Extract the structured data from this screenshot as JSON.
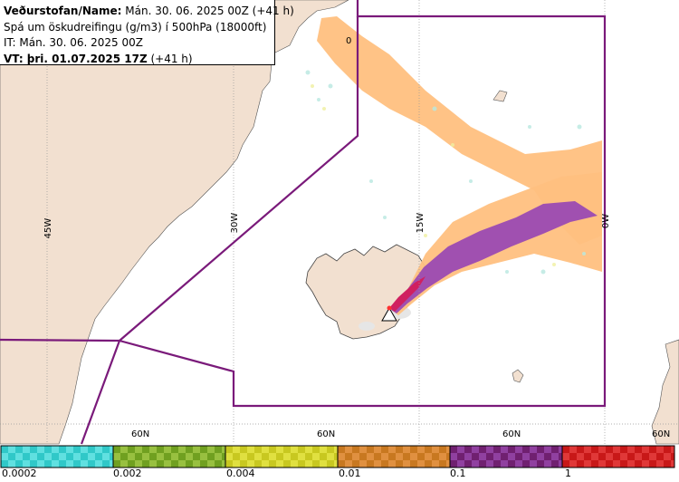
{
  "header": {
    "line1_bold": "Veðurstofan/Name:",
    "line1_rest": " Mán. 30. 06. 2025 00Z (+41 h)",
    "line2": "Spá um öskudreifingu (g/m3) í 500hPa (18000ft)",
    "line3": "IT: Mán. 30. 06. 2025 00Z",
    "line4_bold": "VT: þri. 01.07.2025 17Z",
    "line4_rest": " (+41 h)"
  },
  "map": {
    "longitude_labels": [
      "45W",
      "30W",
      "15W",
      "0W"
    ],
    "latitude_labels": [
      "60N",
      "60N",
      "60N",
      "60N"
    ],
    "contour_label": "0",
    "colors": {
      "land": "#f2e0d0",
      "sea": "#ffffff",
      "region_boundary": "#7a1a7a",
      "ash_low": "#ffc080",
      "ash_high": "#a050b0",
      "ash_very_high": "#d02060"
    }
  },
  "legend": {
    "bins": [
      {
        "color_a": "#30c8c8",
        "color_b": "#60e0e0"
      },
      {
        "color_a": "#70a020",
        "color_b": "#98c040"
      },
      {
        "color_a": "#c8c820",
        "color_b": "#e0e040"
      },
      {
        "color_a": "#c87820",
        "color_b": "#e09040"
      },
      {
        "color_a": "#702070",
        "color_b": "#9040a0"
      },
      {
        "color_a": "#c81818",
        "color_b": "#e03838"
      }
    ],
    "labels": [
      "0.0002",
      "0.002",
      "0.004",
      "0.01",
      "0.1",
      "1"
    ]
  }
}
